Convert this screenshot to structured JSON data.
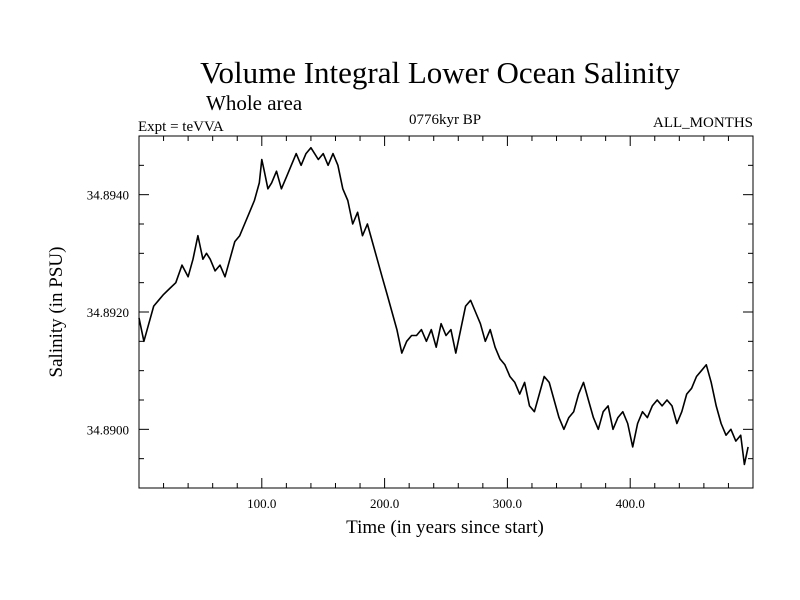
{
  "chart_data": {
    "type": "line",
    "title": "Volume Integral Lower Ocean Salinity",
    "subtitle": "Whole area",
    "annotations": {
      "left": "Expt = teVVA",
      "center": "0776kyr BP",
      "right": "ALL_MONTHS"
    },
    "xlabel": "Time (in years since start)",
    "ylabel": "Salinity (in PSU)",
    "xlim": [
      0,
      500
    ],
    "ylim": [
      34.889,
      34.895
    ],
    "x_ticks": [
      {
        "value": 100,
        "label": "100.0"
      },
      {
        "value": 200,
        "label": "200.0"
      },
      {
        "value": 300,
        "label": "300.0"
      },
      {
        "value": 400,
        "label": "400.0"
      }
    ],
    "y_ticks": [
      {
        "value": 34.89,
        "label": "34.8900"
      },
      {
        "value": 34.892,
        "label": "34.8920"
      },
      {
        "value": 34.894,
        "label": "34.8940"
      }
    ],
    "grid": false,
    "series": [
      {
        "x": [
          0,
          4,
          8,
          12,
          16,
          20,
          25,
          30,
          35,
          40,
          44,
          48,
          50,
          52,
          55,
          58,
          62,
          66,
          70,
          74,
          78,
          82,
          86,
          90,
          94,
          98,
          100,
          102,
          105,
          108,
          112,
          116,
          120,
          124,
          128,
          132,
          136,
          140,
          143,
          146,
          150,
          154,
          158,
          162,
          166,
          170,
          174,
          178,
          182,
          186,
          190,
          194,
          198,
          202,
          206,
          210,
          214,
          218,
          222,
          226,
          230,
          234,
          238,
          242,
          246,
          250,
          254,
          258,
          262,
          266,
          270,
          274,
          278,
          282,
          286,
          290,
          294,
          298,
          302,
          306,
          310,
          314,
          318,
          322,
          326,
          330,
          334,
          338,
          342,
          346,
          350,
          354,
          358,
          362,
          366,
          370,
          374,
          378,
          382,
          386,
          390,
          394,
          398,
          402,
          406,
          410,
          414,
          418,
          422,
          426,
          430,
          434,
          438,
          442,
          446,
          450,
          454,
          458,
          462,
          466,
          470,
          474,
          478,
          482,
          486,
          490,
          493,
          496
        ],
        "y": [
          34.8919,
          34.8915,
          34.8918,
          34.8921,
          34.8922,
          34.8923,
          34.8924,
          34.8925,
          34.8928,
          34.8926,
          34.8929,
          34.8933,
          34.8931,
          34.8929,
          34.893,
          34.8929,
          34.8927,
          34.8928,
          34.8926,
          34.8929,
          34.8932,
          34.8933,
          34.8935,
          34.8937,
          34.8939,
          34.8942,
          34.8946,
          34.8944,
          34.8941,
          34.8942,
          34.8944,
          34.8941,
          34.8943,
          34.8945,
          34.8947,
          34.8945,
          34.8947,
          34.8948,
          34.8947,
          34.8946,
          34.8947,
          34.8945,
          34.8947,
          34.8945,
          34.8941,
          34.8939,
          34.8935,
          34.8937,
          34.8933,
          34.8935,
          34.8932,
          34.8929,
          34.8926,
          34.8923,
          34.892,
          34.8917,
          34.8913,
          34.8915,
          34.8916,
          34.8916,
          34.8917,
          34.8915,
          34.8917,
          34.8914,
          34.8918,
          34.8916,
          34.8917,
          34.8913,
          34.8917,
          34.8921,
          34.8922,
          34.892,
          34.8918,
          34.8915,
          34.8917,
          34.8914,
          34.8912,
          34.8911,
          34.8909,
          34.8908,
          34.8906,
          34.8908,
          34.8904,
          34.8903,
          34.8906,
          34.8909,
          34.8908,
          34.8905,
          34.8902,
          34.89,
          34.8902,
          34.8903,
          34.8906,
          34.8908,
          34.8905,
          34.8902,
          34.89,
          34.8903,
          34.8904,
          34.89,
          34.8902,
          34.8903,
          34.8901,
          34.8897,
          34.8901,
          34.8903,
          34.8902,
          34.8904,
          34.8905,
          34.8904,
          34.8905,
          34.8904,
          34.8901,
          34.8903,
          34.8906,
          34.8907,
          34.8909,
          34.891,
          34.8911,
          34.8908,
          34.8904,
          34.8901,
          34.8899,
          34.89,
          34.8898,
          34.8899,
          34.8894,
          34.8897
        ]
      }
    ]
  }
}
